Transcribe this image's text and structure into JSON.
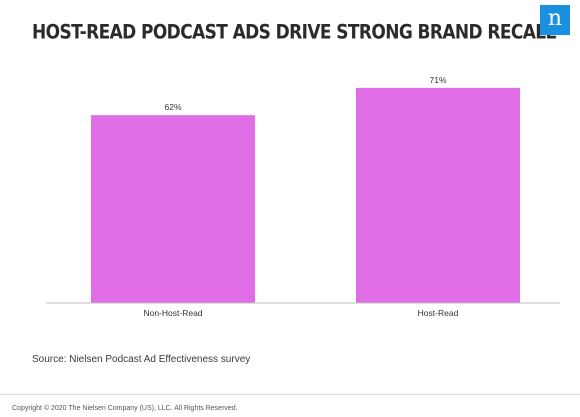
{
  "logo": {
    "icon": "nielsen-n-logo",
    "letter": "n",
    "color": "#1b8fe0"
  },
  "source": "Source: Nielsen Podcast Ad Effectiveness survey",
  "copyright": "Copyright © 2020 The Nielsen Company (US), LLC. All Rights Reserved.",
  "chart_data": {
    "type": "bar",
    "title": "HOST-READ PODCAST ADS DRIVE STRONG BRAND RECALL",
    "categories": [
      "Non-Host-Read",
      "Host-Read"
    ],
    "values": [
      62,
      71
    ],
    "data_labels": [
      "62%",
      "71%"
    ],
    "ylim": [
      0,
      100
    ],
    "grid": false,
    "legend": "none",
    "bar_color": "#e06de6",
    "axis_color": "#bfbfbf"
  }
}
